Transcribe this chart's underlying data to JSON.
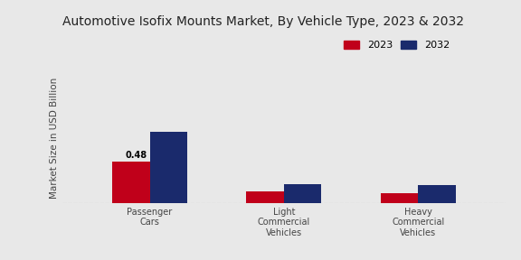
{
  "title": "Automotive Isofix Mounts Market, By Vehicle Type, 2023 & 2032",
  "ylabel": "Market Size in USD Billion",
  "categories": [
    "Passenger\nCars",
    "Light\nCommercial\nVehicles",
    "Heavy\nCommercial\nVehicles"
  ],
  "values_2023": [
    0.48,
    0.13,
    0.11
  ],
  "values_2032": [
    0.82,
    0.22,
    0.2
  ],
  "color_2023": "#c0001a",
  "color_2032": "#1a2a6c",
  "bar_annotation": "0.48",
  "legend_labels": [
    "2023",
    "2032"
  ],
  "background_color": "#e8e8e8",
  "title_fontsize": 10,
  "ylabel_fontsize": 7.5,
  "tick_fontsize": 7,
  "bar_width": 0.28,
  "ylim": [
    0,
    1.5
  ]
}
